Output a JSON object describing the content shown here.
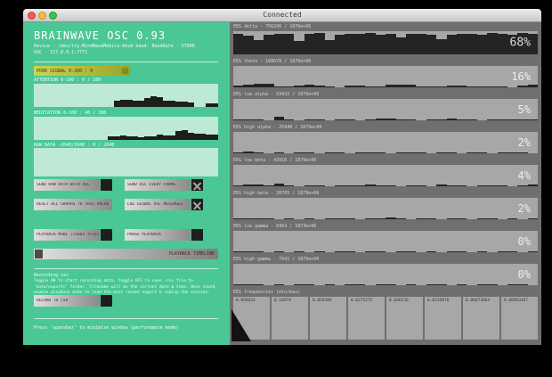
{
  "window": {
    "title": "Connected"
  },
  "left": {
    "title": "BRAINWAVE OSC 0.93",
    "device_line": "Device - /dev/tty.MindWaveMobile-DevA baud: BaudRate - 57600",
    "osc_line": "OSC - 127.0.0.1:7771",
    "poor_signal_label": "POOR SIGNAL 0-200 : 0",
    "toggles": [
      {
        "label": "SEND RAW DATA WITH OSC",
        "checked": false
      },
      {
        "label": "SEND OSC EVERY FRAME",
        "checked": true
      },
      {
        "label": "RESET ALL GRAPHS TO THIS VALUE",
        "checked": false
      },
      {
        "label": "LOG GLOBAL OSC MESSAGES",
        "checked": true
      },
      {
        "label": "PLAYBACK MODE (loads file)",
        "checked": false
      },
      {
        "label": "PAUSE PLAYBACK",
        "checked": false
      }
    ],
    "timeline_label": "PLAYBACK TIMELINE",
    "timeline_value": "0",
    "recording_heading": "Recording osc",
    "recording_body": "Toggle ON to start recording data, toggle OFF to save .csv file to 'data/exports' folder. Filename will be the current date & time. Once saved, enable playback mode to load the most recent export & replay the session.",
    "record_button": "RECORD TO CSV",
    "footer": "Press 'spacebar' to minimise window (performance mode)"
  },
  "right": {
    "freq_header": "EEG frequencies (min/max)",
    "freq_cells": [
      "0.894624",
      "0.16979",
      "0.059384",
      "0.0275275",
      "0.046536",
      "0.0239878",
      "0.00473664",
      "0.00963467"
    ]
  },
  "chart_data": {
    "type": "bar",
    "left_graphs": [
      {
        "label": "ATTENTION 0-100 : 0 / 100",
        "values": [
          0,
          0,
          0,
          0,
          0,
          0,
          0,
          0,
          0,
          0,
          0,
          0,
          0,
          26,
          30,
          32,
          28,
          26,
          40,
          46,
          42,
          28,
          26,
          24,
          22,
          20,
          0,
          0,
          14,
          16
        ]
      },
      {
        "label": "MEDITATION 0-100 : 40 / 100",
        "values": [
          0,
          0,
          0,
          0,
          0,
          0,
          0,
          0,
          0,
          0,
          0,
          0,
          14,
          16,
          18,
          16,
          14,
          12,
          14,
          16,
          22,
          20,
          18,
          40,
          44,
          30,
          28,
          26,
          24,
          22
        ]
      },
      {
        "label": "RAW DATA -2048/2048 : 0 / 2048",
        "values": [
          0,
          0,
          0,
          0,
          0,
          0,
          0,
          0,
          0,
          0,
          0,
          0,
          0,
          0,
          0,
          0,
          0,
          0,
          0,
          0,
          0,
          0,
          0,
          0,
          0,
          0,
          0,
          0,
          0,
          0
        ]
      }
    ],
    "eeg_rows": [
      {
        "label": "EEG delta - 756296 / 1876e+06",
        "percent": "68%",
        "values": [
          88,
          82,
          62,
          85,
          88,
          90,
          58,
          88,
          92,
          60,
          86,
          90,
          88,
          92,
          86,
          90,
          74,
          88,
          90,
          84,
          66,
          84,
          88,
          90,
          86,
          92,
          88,
          86,
          92,
          90
        ]
      },
      {
        "label": "EEG theta - 160678 / 1876e+06",
        "percent": "16%",
        "values": [
          8,
          14,
          18,
          16,
          6,
          4,
          10,
          12,
          10,
          4,
          2,
          8,
          10,
          4,
          3,
          12,
          14,
          12,
          4,
          6,
          3,
          10,
          8,
          4,
          3,
          6,
          4,
          2,
          8,
          12
        ]
      },
      {
        "label": "EEG low alpha - 59432 / 1879e+06",
        "percent": "5%",
        "values": [
          4,
          6,
          3,
          2,
          18,
          3,
          2,
          4,
          3,
          2,
          3,
          4,
          2,
          3,
          10,
          8,
          6,
          3,
          2,
          4,
          6,
          8,
          4,
          3,
          2,
          4,
          3,
          6,
          4,
          3
        ]
      },
      {
        "label": "EEG high alpha - 25940 / 1879e+06",
        "percent": "2%",
        "values": [
          3,
          8,
          6,
          2,
          3,
          2,
          4,
          3,
          2,
          4,
          3,
          2,
          5,
          4,
          3,
          2,
          4,
          6,
          3,
          2,
          5,
          4,
          2,
          3,
          4,
          2,
          3,
          5,
          3,
          2
        ]
      },
      {
        "label": "EEG low beta - 43916 / 1879e+06",
        "percent": "4%",
        "values": [
          4,
          10,
          8,
          3,
          12,
          3,
          2,
          5,
          3,
          2,
          6,
          4,
          3,
          8,
          5,
          3,
          2,
          6,
          4,
          2,
          7,
          5,
          3,
          2,
          4,
          6,
          3,
          2,
          5,
          8
        ]
      },
      {
        "label": "EEG high beta - 28765 / 1879e+06",
        "percent": "2%",
        "values": [
          5,
          3,
          6,
          4,
          2,
          3,
          2,
          4,
          2,
          3,
          5,
          3,
          2,
          4,
          3,
          10,
          3,
          2,
          4,
          3,
          2,
          5,
          3,
          2,
          3,
          4,
          2,
          3,
          2,
          6
        ]
      },
      {
        "label": "EEG low gamma - 8364 / 1873e+06",
        "percent": "0%",
        "values": [
          4,
          6,
          3,
          2,
          4,
          2,
          3,
          2,
          3,
          2,
          4,
          3,
          2,
          5,
          3,
          2,
          3,
          4,
          2,
          3,
          2,
          3,
          4,
          2,
          3,
          2,
          4,
          3,
          2,
          3
        ]
      },
      {
        "label": "EEG high gamma - 7041 / 1876e+06",
        "percent": "0%",
        "values": [
          3,
          5,
          4,
          2,
          3,
          2,
          3,
          4,
          2,
          3,
          2,
          4,
          3,
          2,
          3,
          5,
          2,
          3,
          2,
          4,
          3,
          2,
          3,
          2,
          4,
          3,
          2,
          3,
          4,
          2
        ]
      }
    ]
  }
}
